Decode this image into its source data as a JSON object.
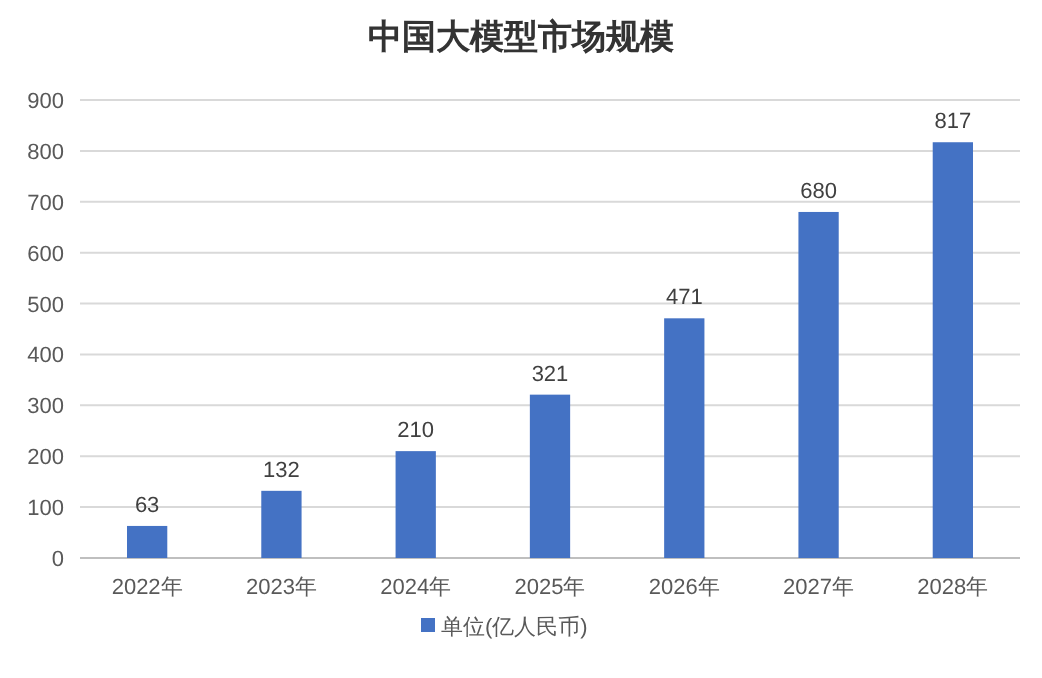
{
  "chart_data": {
    "type": "bar",
    "title": "中国大模型市场规模",
    "categories": [
      "2022年",
      "2023年",
      "2024年",
      "2025年",
      "2026年",
      "2027年",
      "2028年"
    ],
    "series": [
      {
        "name": "单位(亿人民币)",
        "color": "#4472c4",
        "values": [
          63,
          132,
          210,
          321,
          471,
          680,
          817
        ]
      }
    ],
    "ylim": [
      0,
      900
    ],
    "yticks": [
      0,
      100,
      200,
      300,
      400,
      500,
      600,
      700,
      800,
      900
    ],
    "grid": "y",
    "legend": "bottom",
    "data_labels": true
  }
}
